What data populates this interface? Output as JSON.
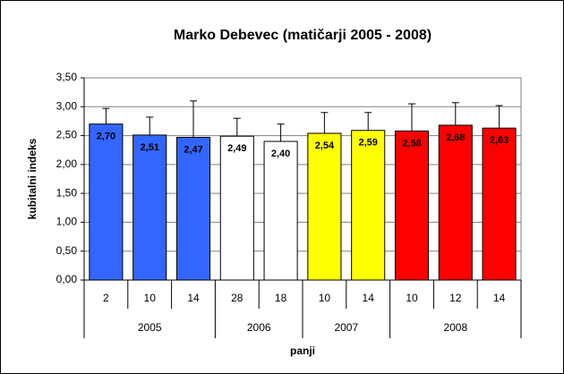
{
  "chart_data": {
    "type": "bar",
    "title": "Marko Debevec (matičarji 2005 - 2008)",
    "y_label": "kubitalni indeks",
    "x_label": "panji",
    "categories": [
      "2",
      "10",
      "14",
      "28",
      "18",
      "10",
      "14",
      "10",
      "12",
      "14"
    ],
    "groups": [
      {
        "label": "2005",
        "size": 3
      },
      {
        "label": "2006",
        "size": 2
      },
      {
        "label": "2007",
        "size": 2
      },
      {
        "label": "2008",
        "size": 3
      }
    ],
    "values": [
      2.7,
      2.51,
      2.47,
      2.49,
      2.4,
      2.54,
      2.59,
      2.58,
      2.68,
      2.63
    ],
    "value_labels": [
      "2,70",
      "2,51",
      "2,47",
      "2,49",
      "2,40",
      "2,54",
      "2,59",
      "2,58",
      "2,68",
      "2,63"
    ],
    "errors": [
      0.27,
      0.31,
      0.63,
      0.31,
      0.3,
      0.36,
      0.31,
      0.47,
      0.39,
      0.39
    ],
    "colors": [
      "#3366ff",
      "#3366ff",
      "#3366ff",
      "#ffffff",
      "#ffffff",
      "#ffff00",
      "#ffff00",
      "#ff0000",
      "#ff0000",
      "#ff0000"
    ],
    "ylim": [
      0,
      3.5
    ],
    "yticks": [
      {
        "value": 0,
        "label": "0,00"
      },
      {
        "value": 0.5,
        "label": "0,50"
      },
      {
        "value": 1,
        "label": "1,00"
      },
      {
        "value": 1.5,
        "label": "1,50"
      },
      {
        "value": 2,
        "label": "2,00"
      },
      {
        "value": 2.5,
        "label": "2,50"
      },
      {
        "value": 3,
        "label": "3,00"
      },
      {
        "value": 3.5,
        "label": "3,50"
      }
    ],
    "grid": true
  }
}
